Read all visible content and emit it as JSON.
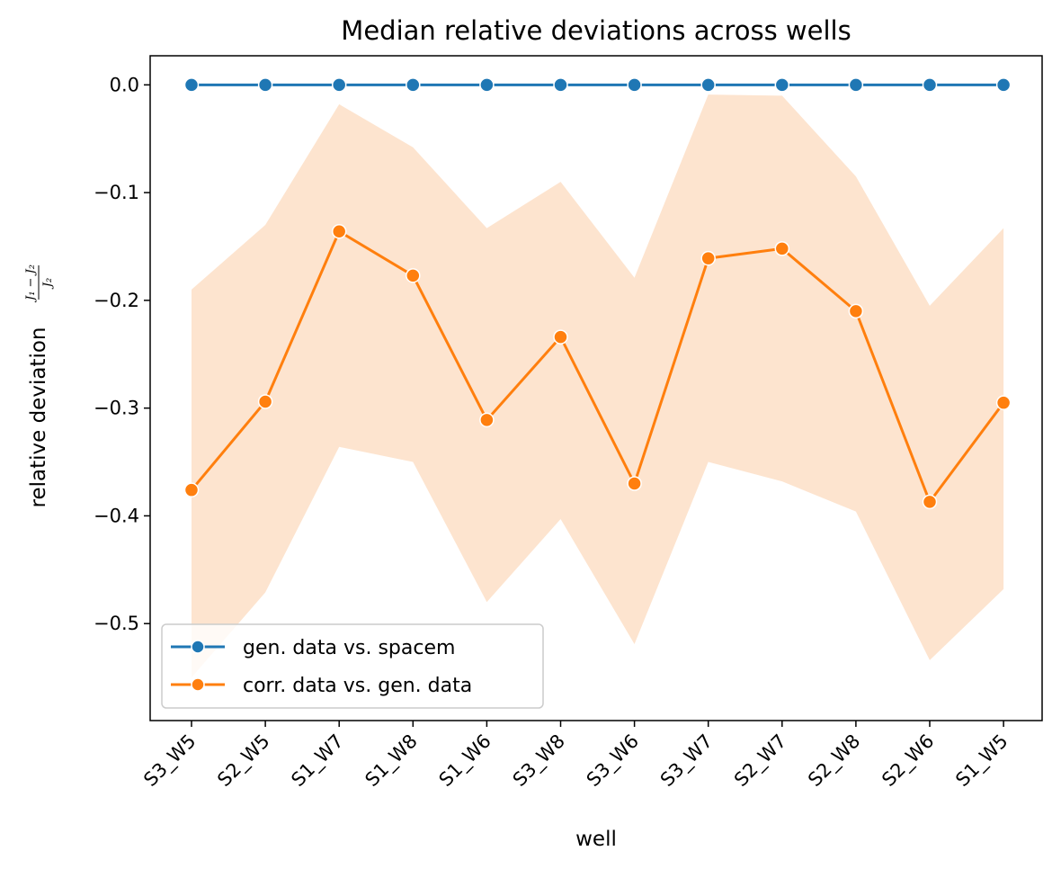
{
  "chart_data": {
    "type": "line",
    "title": "Median relative deviations across wells",
    "xlabel": "well",
    "ylabel": "relative deviation",
    "ylabel_formula": {
      "numerator": "J₁ − J₂",
      "denominator": "J₂"
    },
    "categories": [
      "S3_W5",
      "S2_W5",
      "S1_W7",
      "S1_W8",
      "S1_W6",
      "S3_W8",
      "S3_W6",
      "S3_W7",
      "S2_W7",
      "S2_W8",
      "S2_W6",
      "S1_W5"
    ],
    "ylim": [
      -0.59,
      0.027
    ],
    "yticks": [
      0.0,
      -0.1,
      -0.2,
      -0.3,
      -0.4,
      -0.5
    ],
    "ytick_labels": [
      "0.0",
      "−0.1",
      "−0.2",
      "−0.3",
      "−0.4",
      "−0.5"
    ],
    "series": [
      {
        "name": "gen. data vs. spacem",
        "color": "#1f77b4",
        "values": [
          0,
          0,
          0,
          0,
          0,
          0,
          0,
          0,
          0,
          0,
          0,
          0
        ]
      },
      {
        "name": "corr. data vs. gen. data",
        "color": "#ff7f0e",
        "band_color": "#fde4cf",
        "values": [
          -0.376,
          -0.294,
          -0.136,
          -0.177,
          -0.311,
          -0.234,
          -0.37,
          -0.161,
          -0.152,
          -0.21,
          -0.387,
          -0.295
        ],
        "band_upper": [
          -0.19,
          -0.13,
          -0.018,
          -0.058,
          -0.133,
          -0.09,
          -0.179,
          -0.009,
          -0.01,
          -0.085,
          -0.205,
          -0.133
        ],
        "band_lower": [
          -0.55,
          -0.471,
          -0.336,
          -0.35,
          -0.48,
          -0.403,
          -0.519,
          -0.35,
          -0.368,
          -0.396,
          -0.534,
          -0.468
        ]
      }
    ],
    "legend": "lower-left",
    "grid": false
  }
}
